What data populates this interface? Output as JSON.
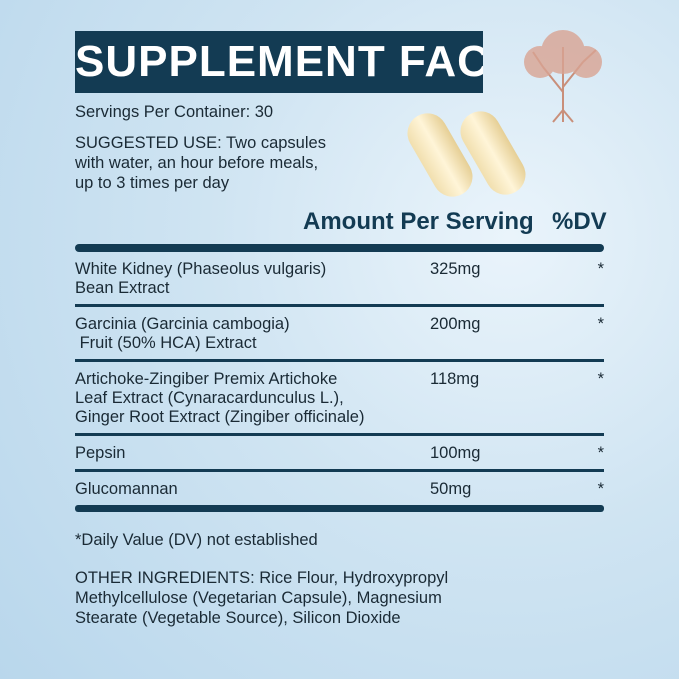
{
  "title": "SUPPLEMENT FACTS",
  "servings": "Servings Per Container: 30",
  "suggested_use": [
    "SUGGESTED USE: Two capsules",
    "with water, an hour before meals,",
    "up to 3 times per day"
  ],
  "header": {
    "amount": "Amount Per Serving",
    "dv": "%DV"
  },
  "rows": [
    {
      "name": [
        "White Kidney (Phaseolus vulgaris)",
        "Bean Extract"
      ],
      "amount": "325mg",
      "dv": "*"
    },
    {
      "name": [
        "Garcinia (Garcinia cambogia)",
        " Fruit (50% HCA) Extract"
      ],
      "amount": "200mg",
      "dv": "*"
    },
    {
      "name": [
        "Artichoke-Zingiber Premix Artichoke",
        "Leaf Extract (Cynaracardunculus L.),",
        "Ginger Root Extract (Zingiber officinale)"
      ],
      "amount": "118mg",
      "dv": "*"
    },
    {
      "name": [
        "Pepsin"
      ],
      "amount": "100mg",
      "dv": "*"
    },
    {
      "name": [
        "Glucomannan"
      ],
      "amount": "50mg",
      "dv": "*"
    }
  ],
  "footnote": "*Daily Value (DV) not established",
  "other_ingredients": [
    "OTHER INGREDIENTS: Rice Flour, Hydroxypropyl",
    "Methylcellulose (Vegetarian Capsule), Magnesium",
    "Stearate (Vegetable Source), Silicon Dioxide"
  ],
  "colors": {
    "dark": "#133b53",
    "tree": "#c98f7a"
  }
}
